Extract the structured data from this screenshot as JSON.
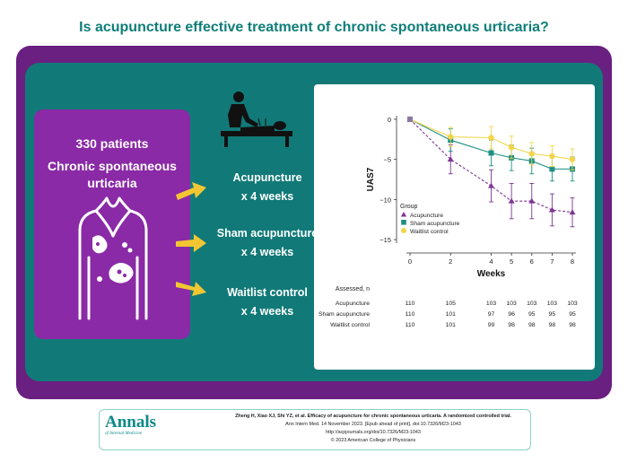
{
  "header": {
    "title": "Is acupuncture effective treatment of chronic spontaneous urticaria?"
  },
  "population": {
    "count": "330 patients",
    "condition": "Chronic spontaneous urticaria"
  },
  "arms": [
    {
      "name": "Acupuncture",
      "duration": "x 4 weeks"
    },
    {
      "name": "Sham acupuncture",
      "duration": "x 4 weeks"
    },
    {
      "name": "Waitlist control",
      "duration": "x 4 weeks"
    }
  ],
  "colors": {
    "teal": "#117a78",
    "purple": "#6a2080",
    "arrow": "#f2c632",
    "acupuncture": "#7d3593",
    "sham": "#1d8f84",
    "waitlist": "#f3d54b"
  },
  "chart_data": {
    "type": "line",
    "xlabel": "Weeks",
    "ylabel": "UAS7",
    "x": [
      0,
      2,
      4,
      5,
      6,
      7,
      8
    ],
    "xticks": [
      0,
      2,
      4,
      5,
      6,
      7,
      8
    ],
    "yticks": [
      0,
      -5,
      -10,
      -15
    ],
    "ylim": [
      -16,
      1
    ],
    "grid": false,
    "legend_title": "Group",
    "legend_position": "bottom-left",
    "series": [
      {
        "name": "Acupuncture",
        "marker": "triangle",
        "line": "dashed",
        "values": [
          0,
          -5,
          -8.3,
          -10.2,
          -10.2,
          -11.3,
          -11.6
        ],
        "err": [
          0,
          1.8,
          2,
          2.2,
          2.2,
          2,
          1.8
        ]
      },
      {
        "name": "Sham acupuncture",
        "marker": "square",
        "line": "solid",
        "values": [
          0,
          -2.6,
          -4.2,
          -4.8,
          -5.2,
          -6.2,
          -6.2
        ],
        "err": [
          0,
          1.4,
          1.6,
          1.6,
          1.6,
          1.5,
          1.5
        ]
      },
      {
        "name": "Waitlist control",
        "marker": "circle",
        "line": "solid",
        "values": [
          0,
          -2.2,
          -2.3,
          -3.5,
          -4.3,
          -4.6,
          -5
        ],
        "err": [
          0,
          1.2,
          1.4,
          1.4,
          1.4,
          1.3,
          1.3
        ]
      }
    ]
  },
  "assessed": {
    "title": "Assessed, n",
    "rows": [
      {
        "label": "Acupuncture",
        "values": [
          "110",
          "105",
          "103",
          "103",
          "103",
          "103",
          "103"
        ]
      },
      {
        "label": "Sham acupuncture",
        "values": [
          "110",
          "101",
          "97",
          "96",
          "95",
          "95",
          "95"
        ]
      },
      {
        "label": "Waitlist control",
        "values": [
          "110",
          "101",
          "99",
          "98",
          "98",
          "98",
          "98"
        ]
      }
    ]
  },
  "footer": {
    "logo": "Annals",
    "logo_sub": "of Internal Medicine",
    "citation_line1": "Zheng H, Xiao XJ, Shi YZ, et al. Efficacy of acupuncture for chronic spontaneous urticaria. A randomized controlled trial.",
    "citation_line2": "Ann Intern Med. 14 November 2023. [Epub ahead of print]. doi:10.7326/M23-1043",
    "citation_line3": "http://acpjournals.org/doi/10.7326/M23-1043",
    "copyright": "© 2023 American College of Physicians"
  }
}
